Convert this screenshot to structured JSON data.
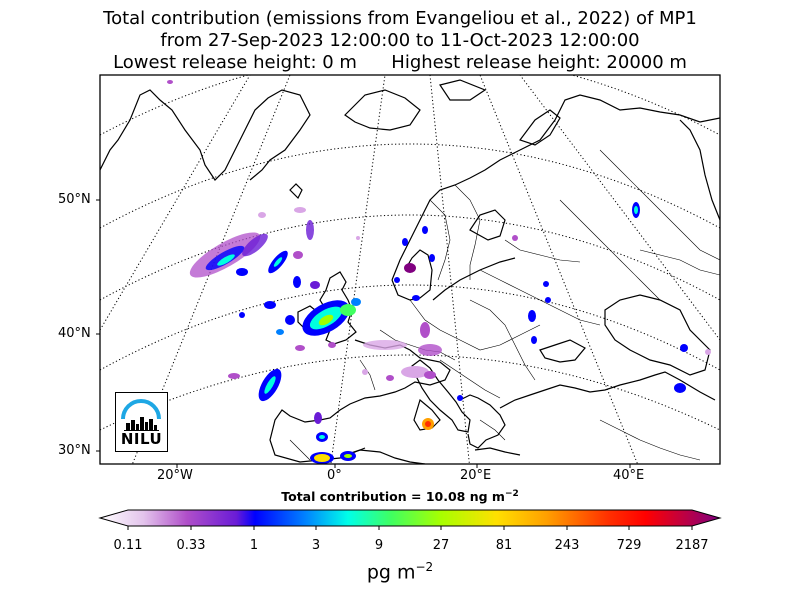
{
  "title": {
    "line1": "Total contribution (emissions from Evangeliou et al., 2022) of MP1",
    "line2": "from 27-Sep-2023 12:00:00 to 11-Oct-2023 12:00:00",
    "line3": "Lowest release height: 0 m      Highest release height: 20000 m"
  },
  "map": {
    "lat_labels": [
      "50°N",
      "40°N",
      "30°N"
    ],
    "lon_labels": [
      "20°W",
      "0°",
      "20°E",
      "40°E"
    ],
    "logo_text": "NILU",
    "colors": {
      "coast": "#000000",
      "grid": "#000000"
    }
  },
  "total_contribution": {
    "text": "Total contribution = 10.08 ng m",
    "exponent": "−2"
  },
  "colorbar": {
    "ticks": [
      "0.11",
      "0.33",
      "1",
      "3",
      "9",
      "27",
      "81",
      "243",
      "729",
      "2187"
    ],
    "units": "pg m",
    "units_exponent": "−2",
    "colors": [
      "#ffffff",
      "#e3c4ec",
      "#b04fc9",
      "#6a1cd6",
      "#0000ff",
      "#00a0ff",
      "#00ffe0",
      "#40ff60",
      "#a0ff00",
      "#ffe000",
      "#ffa000",
      "#ff3000",
      "#ff0000",
      "#c00040",
      "#800080"
    ]
  }
}
